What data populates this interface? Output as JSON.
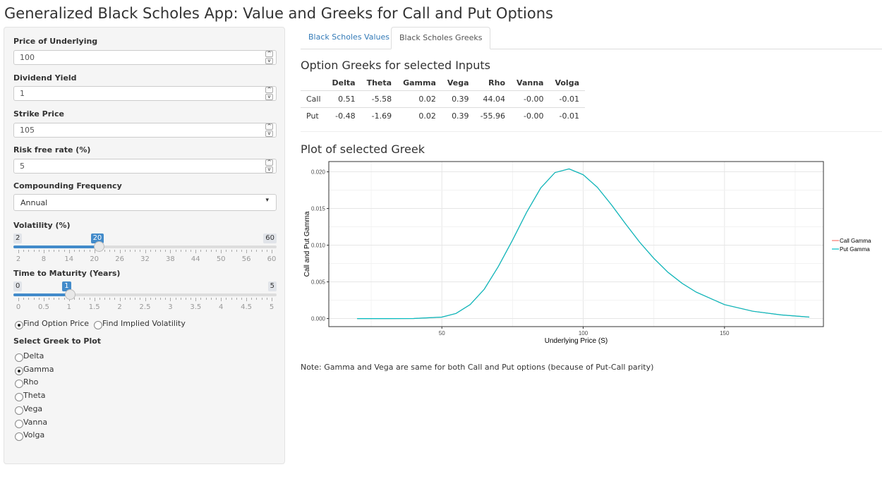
{
  "app": {
    "title": "Generalized Black Scholes App: Value and Greeks for Call and Put Options"
  },
  "inputs": {
    "price": {
      "label": "Price of Underlying",
      "value": "100"
    },
    "dividend": {
      "label": "Dividend Yield",
      "value": "1"
    },
    "strike": {
      "label": "Strike Price",
      "value": "105"
    },
    "riskfree": {
      "label": "Risk free rate (%)",
      "value": "5"
    },
    "spin_up": "^",
    "spin_down": "v",
    "compounding": {
      "label": "Compounding Frequency",
      "value": "Annual",
      "caret": "▾"
    }
  },
  "volatility": {
    "label": "Volatility (%)",
    "min": "2",
    "max": "60",
    "current": "20",
    "fraction": 0.3103,
    "ticks": [
      "2",
      "8",
      "14",
      "20",
      "26",
      "32",
      "38",
      "44",
      "50",
      "56",
      "60"
    ]
  },
  "maturity": {
    "label": "Time to Maturity (Years)",
    "min": "0",
    "max": "5",
    "current": "1",
    "fraction": 0.2,
    "ticks": [
      "0",
      "0.5",
      "1",
      "1.5",
      "2",
      "2.5",
      "3",
      "3.5",
      "4",
      "4.5",
      "5"
    ]
  },
  "mode": {
    "option_price": "Find Option Price",
    "implied_vol": "Find Implied Volatility",
    "selected": "option_price"
  },
  "greek_select": {
    "label": "Select Greek to Plot",
    "options": [
      "Delta",
      "Gamma",
      "Rho",
      "Theta",
      "Vega",
      "Vanna",
      "Volga"
    ],
    "selected": "Gamma"
  },
  "tabs": {
    "values": "Black Scholes Values",
    "greeks": "Black Scholes Greeks",
    "active": "greeks"
  },
  "greeks_table": {
    "heading": "Option Greeks for selected Inputs",
    "columns": [
      "",
      "Delta",
      "Theta",
      "Gamma",
      "Vega",
      "Rho",
      "Vanna",
      "Volga"
    ],
    "rows": [
      [
        "Call",
        "0.51",
        "-5.58",
        "0.02",
        "0.39",
        "44.04",
        "-0.00",
        "-0.01"
      ],
      [
        "Put",
        "-0.48",
        "-1.69",
        "0.02",
        "0.39",
        "-55.96",
        "-0.00",
        "-0.01"
      ]
    ]
  },
  "plot": {
    "heading": "Plot of selected Greek"
  },
  "chart_data": {
    "type": "line",
    "xlabel": "Underlying Price (S)",
    "ylabel": "Call and Put  Gamma",
    "xlim": [
      10,
      185
    ],
    "ylim": [
      -0.0011,
      0.0214
    ],
    "xticks": [
      "50",
      "100",
      "150"
    ],
    "yticks": [
      "0.000",
      "0.005",
      "0.010",
      "0.015",
      "0.020"
    ],
    "grid": true,
    "legend_position": "right",
    "series": [
      {
        "name": "Call Gamma",
        "color": "#F8766D",
        "x": [
          20,
          30,
          40,
          50,
          55,
          60,
          65,
          70,
          75,
          80,
          85,
          90,
          95,
          100,
          105,
          110,
          115,
          120,
          125,
          130,
          135,
          140,
          150,
          160,
          170,
          180
        ],
        "y": [
          0.0,
          0.0,
          1e-05,
          0.0002,
          0.0007,
          0.0019,
          0.004,
          0.0071,
          0.0107,
          0.0145,
          0.0178,
          0.0199,
          0.0204,
          0.0196,
          0.0179,
          0.0155,
          0.0129,
          0.0104,
          0.0082,
          0.0063,
          0.0048,
          0.0036,
          0.0019,
          0.001,
          0.0005,
          0.0002
        ]
      },
      {
        "name": "Put Gamma",
        "color": "#00BFC4",
        "x": [
          20,
          30,
          40,
          50,
          55,
          60,
          65,
          70,
          75,
          80,
          85,
          90,
          95,
          100,
          105,
          110,
          115,
          120,
          125,
          130,
          135,
          140,
          150,
          160,
          170,
          180
        ],
        "y": [
          0.0,
          0.0,
          1e-05,
          0.0002,
          0.0007,
          0.0019,
          0.004,
          0.0071,
          0.0107,
          0.0145,
          0.0178,
          0.0199,
          0.0204,
          0.0196,
          0.0179,
          0.0155,
          0.0129,
          0.0104,
          0.0082,
          0.0063,
          0.0048,
          0.0036,
          0.0019,
          0.001,
          0.0005,
          0.0002
        ]
      }
    ]
  },
  "note": "Note: Gamma and Vega are same for both Call and Put options (because of Put-Call parity)"
}
